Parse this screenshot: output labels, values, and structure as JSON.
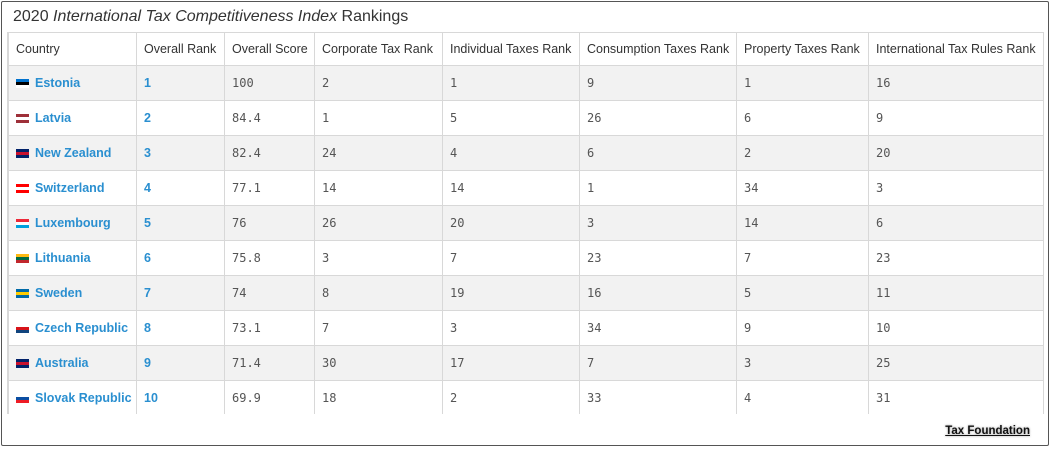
{
  "title": {
    "year": "2020",
    "italic": "International Tax Competitiveness Index",
    "suffix": "Rankings"
  },
  "footer": {
    "link_text": "Tax Foundation"
  },
  "chart_data": {
    "type": "table",
    "columns": [
      "Country",
      "Overall Rank",
      "Overall Score",
      "Corporate Tax Rank",
      "Individual Taxes Rank",
      "Consumption Taxes Rank",
      "Property Taxes Rank",
      "International Tax Rules Rank"
    ],
    "rows": [
      {
        "country": "Estonia",
        "flag": [
          "#0072ce",
          "#000000",
          "#ffffff"
        ],
        "overall_rank": "1",
        "overall_score": "100",
        "corporate": "2",
        "individual": "1",
        "consumption": "9",
        "property": "1",
        "international": "16"
      },
      {
        "country": "Latvia",
        "flag": [
          "#9e3039",
          "#ffffff",
          "#9e3039"
        ],
        "overall_rank": "2",
        "overall_score": "84.4",
        "corporate": "1",
        "individual": "5",
        "consumption": "26",
        "property": "6",
        "international": "9"
      },
      {
        "country": "New Zealand",
        "flag": [
          "#012169",
          "#c8102e",
          "#012169"
        ],
        "overall_rank": "3",
        "overall_score": "82.4",
        "corporate": "24",
        "individual": "4",
        "consumption": "6",
        "property": "2",
        "international": "20"
      },
      {
        "country": "Switzerland",
        "flag": [
          "#ff0000",
          "#ffffff",
          "#ff0000"
        ],
        "overall_rank": "4",
        "overall_score": "77.1",
        "corporate": "14",
        "individual": "14",
        "consumption": "1",
        "property": "34",
        "international": "3"
      },
      {
        "country": "Luxembourg",
        "flag": [
          "#ed2939",
          "#ffffff",
          "#00a1de"
        ],
        "overall_rank": "5",
        "overall_score": "76",
        "corporate": "26",
        "individual": "20",
        "consumption": "3",
        "property": "14",
        "international": "6"
      },
      {
        "country": "Lithuania",
        "flag": [
          "#fdb913",
          "#006a44",
          "#c1272d"
        ],
        "overall_rank": "6",
        "overall_score": "75.8",
        "corporate": "3",
        "individual": "7",
        "consumption": "23",
        "property": "7",
        "international": "23"
      },
      {
        "country": "Sweden",
        "flag": [
          "#006aa7",
          "#fecc00",
          "#006aa7"
        ],
        "overall_rank": "7",
        "overall_score": "74",
        "corporate": "8",
        "individual": "19",
        "consumption": "16",
        "property": "5",
        "international": "11"
      },
      {
        "country": "Czech Republic",
        "flag": [
          "#ffffff",
          "#d7141a",
          "#11457e"
        ],
        "overall_rank": "8",
        "overall_score": "73.1",
        "corporate": "7",
        "individual": "3",
        "consumption": "34",
        "property": "9",
        "international": "10"
      },
      {
        "country": "Australia",
        "flag": [
          "#012169",
          "#c8102e",
          "#012169"
        ],
        "overall_rank": "9",
        "overall_score": "71.4",
        "corporate": "30",
        "individual": "17",
        "consumption": "7",
        "property": "3",
        "international": "25"
      },
      {
        "country": "Slovak Republic",
        "flag": [
          "#ffffff",
          "#0b4ea2",
          "#ee1c25"
        ],
        "overall_rank": "10",
        "overall_score": "69.9",
        "corporate": "18",
        "individual": "2",
        "consumption": "33",
        "property": "4",
        "international": "31"
      }
    ]
  }
}
